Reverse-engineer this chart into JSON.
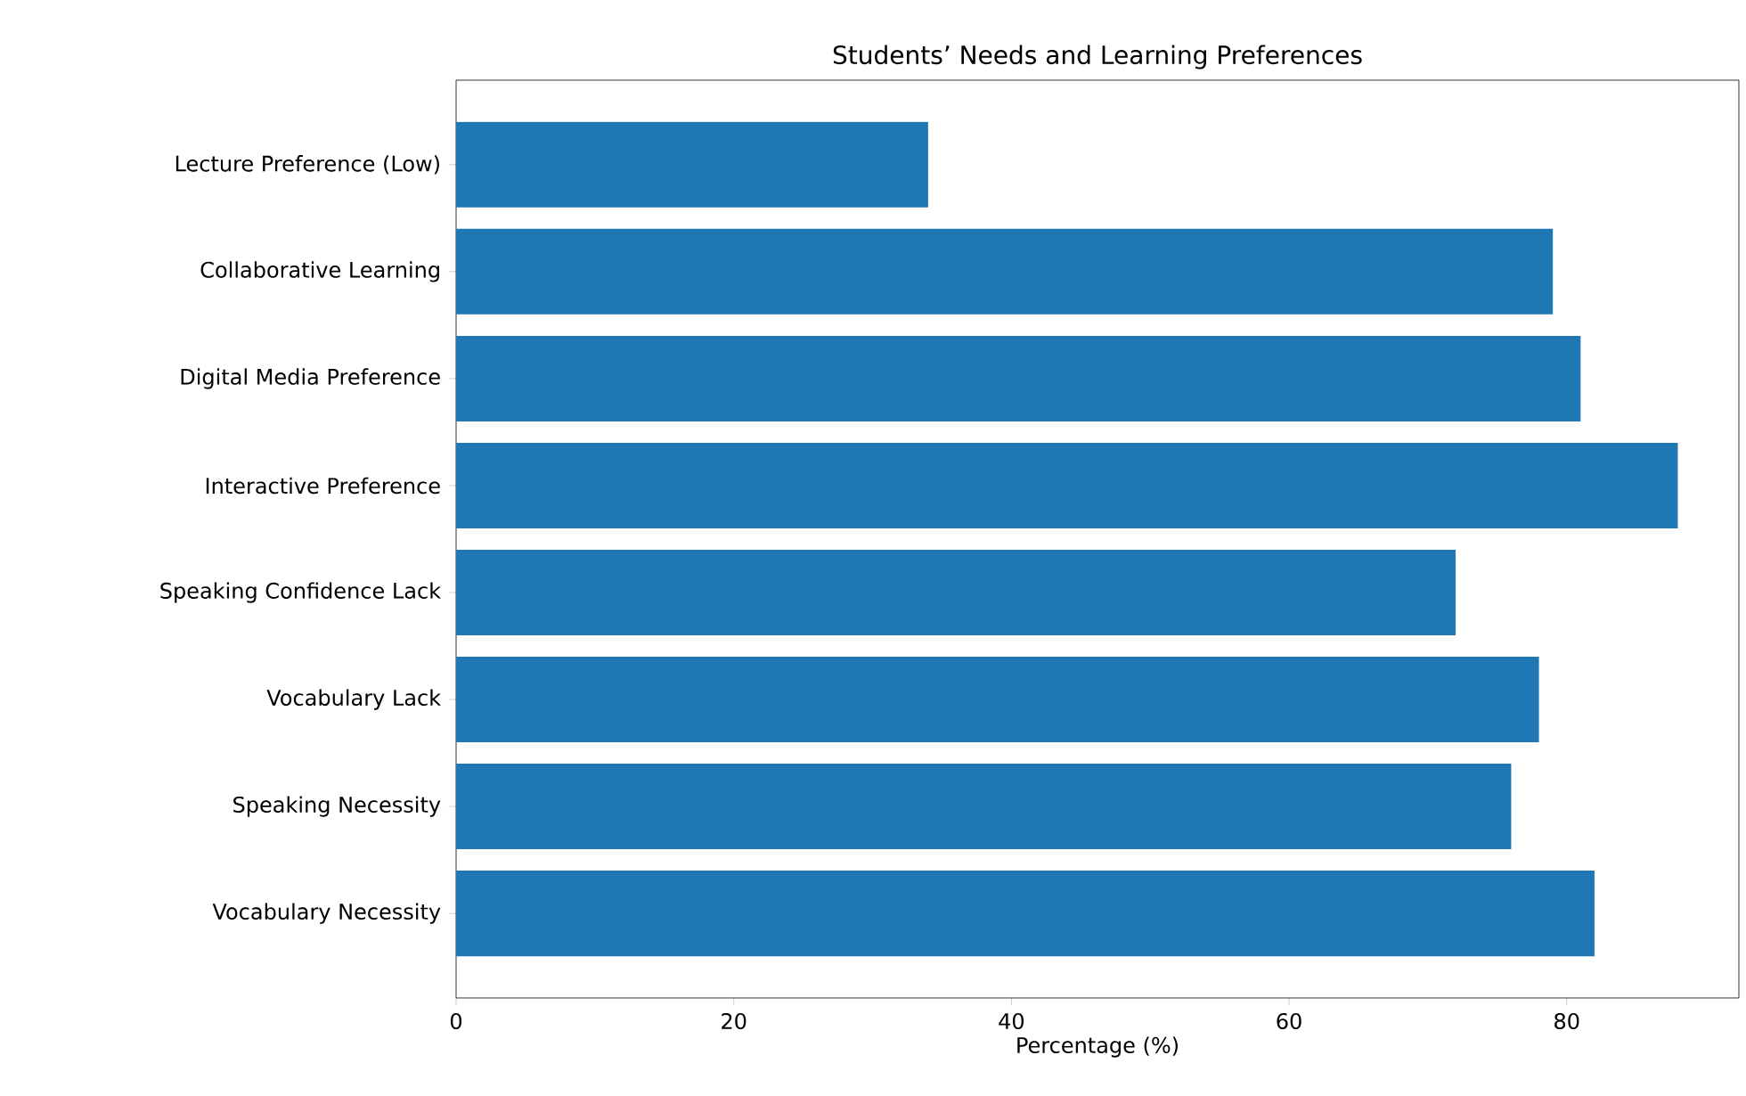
{
  "chart_data": {
    "type": "bar",
    "orientation": "horizontal",
    "title": "Students’ Needs and Learning Preferences",
    "xlabel": "Percentage (%)",
    "categories": [
      "Lecture Preference (Low)",
      "Collaborative Learning",
      "Digital Media Preference",
      "Interactive Preference",
      "Speaking Confidence Lack",
      "Vocabulary Lack",
      "Speaking Necessity",
      "Vocabulary Necessity"
    ],
    "values": [
      34,
      79,
      81,
      88,
      72,
      78,
      76,
      82
    ],
    "color": "#1f77b4",
    "xlim": [
      0,
      92.4
    ],
    "xticks": [
      0,
      20,
      40,
      60,
      80
    ]
  }
}
